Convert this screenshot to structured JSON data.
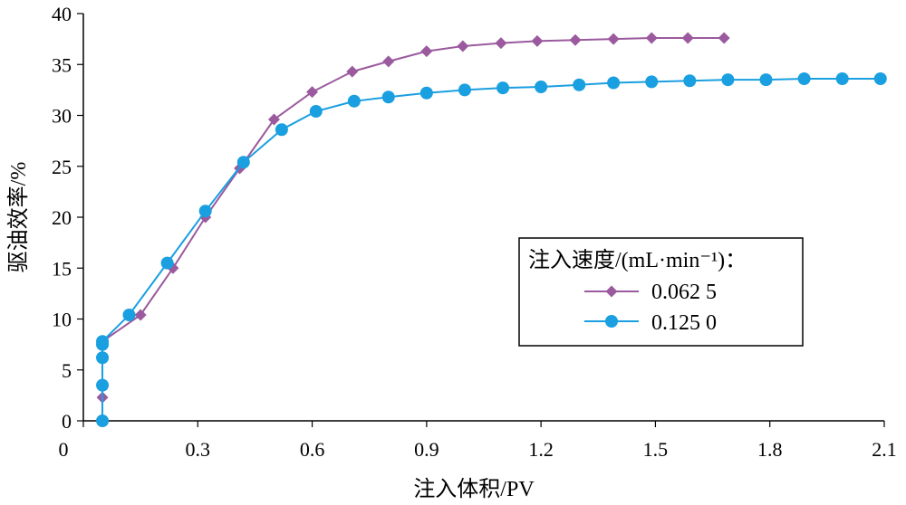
{
  "chart_data": {
    "type": "line",
    "xlabel": "注入体积/PV",
    "ylabel": "驱油效率/%",
    "xlim": [
      0,
      2.1
    ],
    "ylim": [
      0,
      40
    ],
    "x_ticks": [
      "0",
      "0.3",
      "0.6",
      "0.9",
      "1.2",
      "1.5",
      "1.8",
      "2.1"
    ],
    "x_tick_values": [
      0,
      0.3,
      0.6,
      0.9,
      1.2,
      1.5,
      1.8,
      2.1
    ],
    "y_ticks": [
      "0",
      "5",
      "10",
      "15",
      "20",
      "25",
      "30",
      "35",
      "40"
    ],
    "y_tick_values": [
      0,
      5,
      10,
      15,
      20,
      25,
      30,
      35,
      40
    ],
    "grid": false,
    "legend": {
      "placement": "bottom-right",
      "title": "注入速度/(mL·min⁻¹)："
    },
    "series": [
      {
        "name": "0.062 5",
        "color": "#9b5a9e",
        "marker": "diamond",
        "x": [
          0.05,
          0.05,
          0.15,
          0.235,
          0.32,
          0.41,
          0.5,
          0.6,
          0.705,
          0.8,
          0.9,
          0.995,
          1.095,
          1.19,
          1.29,
          1.39,
          1.49,
          1.585,
          1.68
        ],
        "y": [
          2.3,
          7.8,
          10.4,
          15.0,
          20.0,
          24.8,
          29.6,
          32.3,
          34.3,
          35.3,
          36.3,
          36.8,
          37.1,
          37.3,
          37.4,
          37.5,
          37.6,
          37.6,
          37.6
        ]
      },
      {
        "name": "0.125 0",
        "color": "#1a9fe0",
        "marker": "circle",
        "x": [
          0.05,
          0.05,
          0.05,
          0.05,
          0.05,
          0.12,
          0.22,
          0.32,
          0.42,
          0.52,
          0.61,
          0.71,
          0.8,
          0.9,
          1.0,
          1.1,
          1.2,
          1.3,
          1.39,
          1.49,
          1.59,
          1.69,
          1.79,
          1.89,
          1.99,
          2.09
        ],
        "y": [
          0,
          3.5,
          6.2,
          7.5,
          7.8,
          10.4,
          15.5,
          20.6,
          25.4,
          28.6,
          30.4,
          31.4,
          31.8,
          32.2,
          32.5,
          32.7,
          32.8,
          33.0,
          33.2,
          33.3,
          33.4,
          33.5,
          33.5,
          33.6,
          33.6,
          33.6
        ]
      }
    ]
  }
}
